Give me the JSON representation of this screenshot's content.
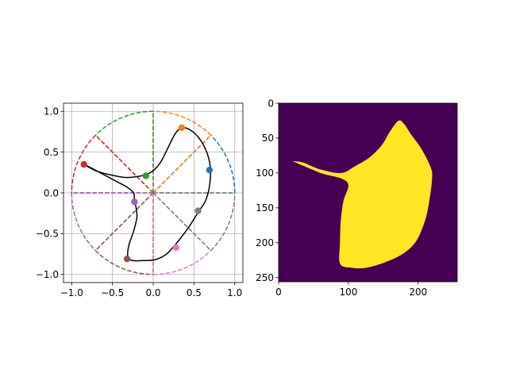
{
  "figure": {
    "background": "#ffffff"
  },
  "chart_data": [
    {
      "type": "line",
      "title": "",
      "xlabel": "",
      "ylabel": "",
      "xlim": [
        -1.1,
        1.1
      ],
      "ylim": [
        -1.1,
        1.1
      ],
      "grid": true,
      "aspect": "equal",
      "xticks": [
        "−1.0",
        "−0.5",
        "0.0",
        "0.5",
        "1.0"
      ],
      "yticks": [
        "−1.0",
        "−0.5",
        "0.0",
        "0.5",
        "1.0"
      ],
      "xtick_values": [
        -1.0,
        -0.5,
        0.0,
        0.5,
        1.0
      ],
      "ytick_values": [
        -1.0,
        -0.5,
        0.0,
        0.5,
        1.0
      ],
      "unit_circle": {
        "radius": 1.0,
        "style": "dashed"
      },
      "sectors": [
        {
          "color": "#1f77b4",
          "start_deg": 0,
          "end_deg": 45
        },
        {
          "color": "#ff7f0e",
          "start_deg": 45,
          "end_deg": 90
        },
        {
          "color": "#2ca02c",
          "start_deg": 90,
          "end_deg": 135
        },
        {
          "color": "#d62728",
          "start_deg": 135,
          "end_deg": 180
        },
        {
          "color": "#9467bd",
          "start_deg": 180,
          "end_deg": 225
        },
        {
          "color": "#8c564b",
          "start_deg": 225,
          "end_deg": 270
        },
        {
          "color": "#e377c2",
          "start_deg": 270,
          "end_deg": 315
        },
        {
          "color": "#7f7f7f",
          "start_deg": 315,
          "end_deg": 360
        }
      ],
      "control_points": [
        {
          "x": 0.69,
          "y": 0.28,
          "color": "#1f77b4"
        },
        {
          "x": 0.35,
          "y": 0.8,
          "color": "#ff7f0e"
        },
        {
          "x": -0.09,
          "y": 0.21,
          "color": "#2ca02c"
        },
        {
          "x": -0.85,
          "y": 0.35,
          "color": "#d62728"
        },
        {
          "x": -0.23,
          "y": -0.11,
          "color": "#9467bd"
        },
        {
          "x": -0.32,
          "y": -0.81,
          "color": "#8c564b"
        },
        {
          "x": 0.28,
          "y": -0.67,
          "color": "#e377c2"
        },
        {
          "x": 0.55,
          "y": -0.22,
          "color": "#7f7f7f"
        }
      ],
      "curve": {
        "color": "#000000",
        "points": [
          [
            -0.85,
            0.35
          ],
          [
            -0.7,
            0.27
          ],
          [
            -0.52,
            0.22
          ],
          [
            -0.35,
            0.19
          ],
          [
            -0.2,
            0.2
          ],
          [
            -0.05,
            0.24
          ],
          [
            0.08,
            0.36
          ],
          [
            0.18,
            0.55
          ],
          [
            0.28,
            0.74
          ],
          [
            0.38,
            0.8
          ],
          [
            0.52,
            0.72
          ],
          [
            0.64,
            0.54
          ],
          [
            0.7,
            0.32
          ],
          [
            0.69,
            0.08
          ],
          [
            0.64,
            -0.1
          ],
          [
            0.55,
            -0.24
          ],
          [
            0.45,
            -0.4
          ],
          [
            0.34,
            -0.55
          ],
          [
            0.25,
            -0.66
          ],
          [
            0.15,
            -0.76
          ],
          [
            0.02,
            -0.82
          ],
          [
            -0.12,
            -0.83
          ],
          [
            -0.25,
            -0.83
          ],
          [
            -0.31,
            -0.79
          ],
          [
            -0.3,
            -0.65
          ],
          [
            -0.24,
            -0.47
          ],
          [
            -0.2,
            -0.3
          ],
          [
            -0.21,
            -0.18
          ],
          [
            -0.23,
            -0.1
          ],
          [
            -0.24,
            0.0
          ],
          [
            -0.32,
            0.07
          ],
          [
            -0.45,
            0.14
          ],
          [
            -0.6,
            0.22
          ],
          [
            -0.75,
            0.3
          ],
          [
            -0.85,
            0.35
          ]
        ]
      }
    },
    {
      "type": "heatmap",
      "title": "",
      "xlabel": "",
      "ylabel": "",
      "xlim": [
        0,
        256
      ],
      "ylim": [
        256,
        0
      ],
      "xticks": [
        "0",
        "100",
        "200"
      ],
      "yticks": [
        "0",
        "50",
        "100",
        "150",
        "200",
        "250"
      ],
      "xtick_values": [
        0,
        100,
        200
      ],
      "ytick_values": [
        0,
        50,
        100,
        150,
        200,
        250
      ],
      "colors": {
        "background": "#440154",
        "foreground": "#fde725"
      },
      "mask_outline": [
        [
          20,
          83
        ],
        [
          60,
          100
        ],
        [
          90,
          108
        ],
        [
          100,
          118
        ],
        [
          93,
          140
        ],
        [
          89,
          170
        ],
        [
          88,
          200
        ],
        [
          88,
          230
        ],
        [
          105,
          236
        ],
        [
          125,
          236
        ],
        [
          150,
          229
        ],
        [
          178,
          216
        ],
        [
          197,
          198
        ],
        [
          210,
          168
        ],
        [
          216,
          140
        ],
        [
          220,
          108
        ],
        [
          218,
          92
        ],
        [
          205,
          66
        ],
        [
          190,
          45
        ],
        [
          180,
          30
        ],
        [
          172,
          25
        ],
        [
          160,
          40
        ],
        [
          148,
          60
        ],
        [
          130,
          78
        ],
        [
          110,
          90
        ],
        [
          90,
          100
        ],
        [
          60,
          95
        ],
        [
          35,
          85
        ],
        [
          20,
          83
        ]
      ]
    }
  ]
}
